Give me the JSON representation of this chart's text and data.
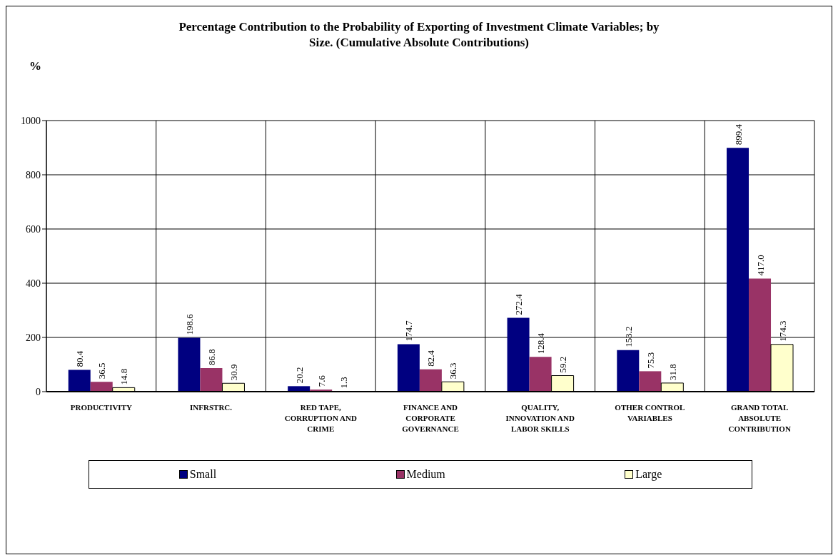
{
  "chart_data": {
    "type": "bar",
    "title": "Percentage Contribution to the Probability of Exporting of Investment Climate Variables; by Size. (Cumulative Absolute Contributions)",
    "ylabel": "%",
    "categories": [
      "PRODUCTIVITY",
      "INFRSTRC.",
      "RED TAPE, CORRUPTION AND CRIME",
      "FINANCE AND CORPORATE GOVERNANCE",
      "QUALITY, INNOVATION AND LABOR SKILLS",
      "OTHER CONTROL VARIABLES",
      "GRAND TOTAL ABSOLUTE CONTRIBUTION"
    ],
    "series": [
      {
        "name": "Small",
        "color": "#000080",
        "values": [
          80.4,
          198.6,
          20.2,
          174.7,
          272.4,
          153.2,
          899.4
        ],
        "value_labels": [
          "80.4",
          "198.6",
          "20.2",
          "174.7",
          "272.4",
          "153.2",
          "899.4"
        ]
      },
      {
        "name": "Medium",
        "color": "#993366",
        "values": [
          36.5,
          86.8,
          7.6,
          82.4,
          128.4,
          75.3,
          417.0
        ],
        "value_labels": [
          "36.5",
          "86.8",
          "7.6",
          "82.4",
          "128.4",
          "75.3",
          "417.0"
        ]
      },
      {
        "name": "Large",
        "color": "#ffffcc",
        "values": [
          14.8,
          30.9,
          1.3,
          36.3,
          59.2,
          31.8,
          174.3
        ],
        "value_labels": [
          "14.8",
          "30.9",
          "1.3",
          "36.3",
          "59.2",
          "31.8",
          "174.3"
        ]
      }
    ],
    "ylim": [
      0,
      1000
    ],
    "yticks": [
      0,
      200,
      400,
      600,
      800,
      1000
    ],
    "grid": true,
    "legend": "bottom"
  }
}
